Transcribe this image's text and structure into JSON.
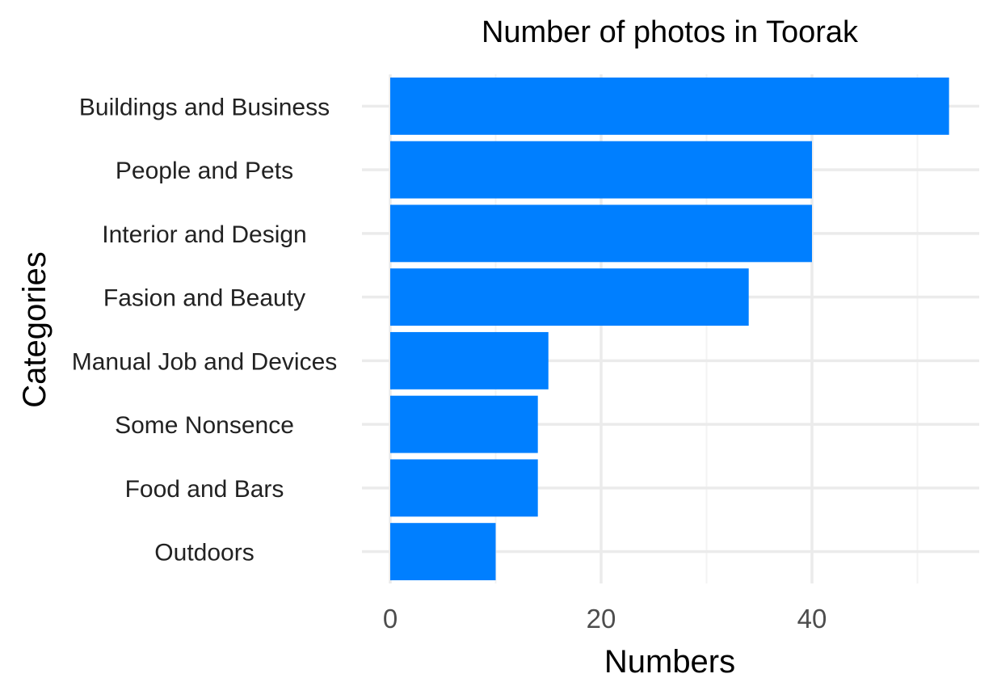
{
  "chart_data": {
    "type": "bar",
    "orientation": "horizontal",
    "title": "Number of photos in Toorak",
    "xlabel": "Numbers",
    "ylabel": "Categories",
    "categories": [
      "Buildings and Business",
      "People and Pets",
      "Interior and Design",
      "Fasion and Beauty",
      "Manual Job and Devices",
      "Some Nonsence",
      "Food and Bars",
      "Outdoors"
    ],
    "values": [
      53,
      40,
      40,
      34,
      15,
      14,
      14,
      10
    ],
    "xticks": [
      0,
      20,
      40
    ],
    "xlim": [
      0,
      55.7
    ],
    "grid": true,
    "legend": "none",
    "colors": {
      "bar": "#007FFF",
      "grid": "#EBEBEB"
    }
  }
}
